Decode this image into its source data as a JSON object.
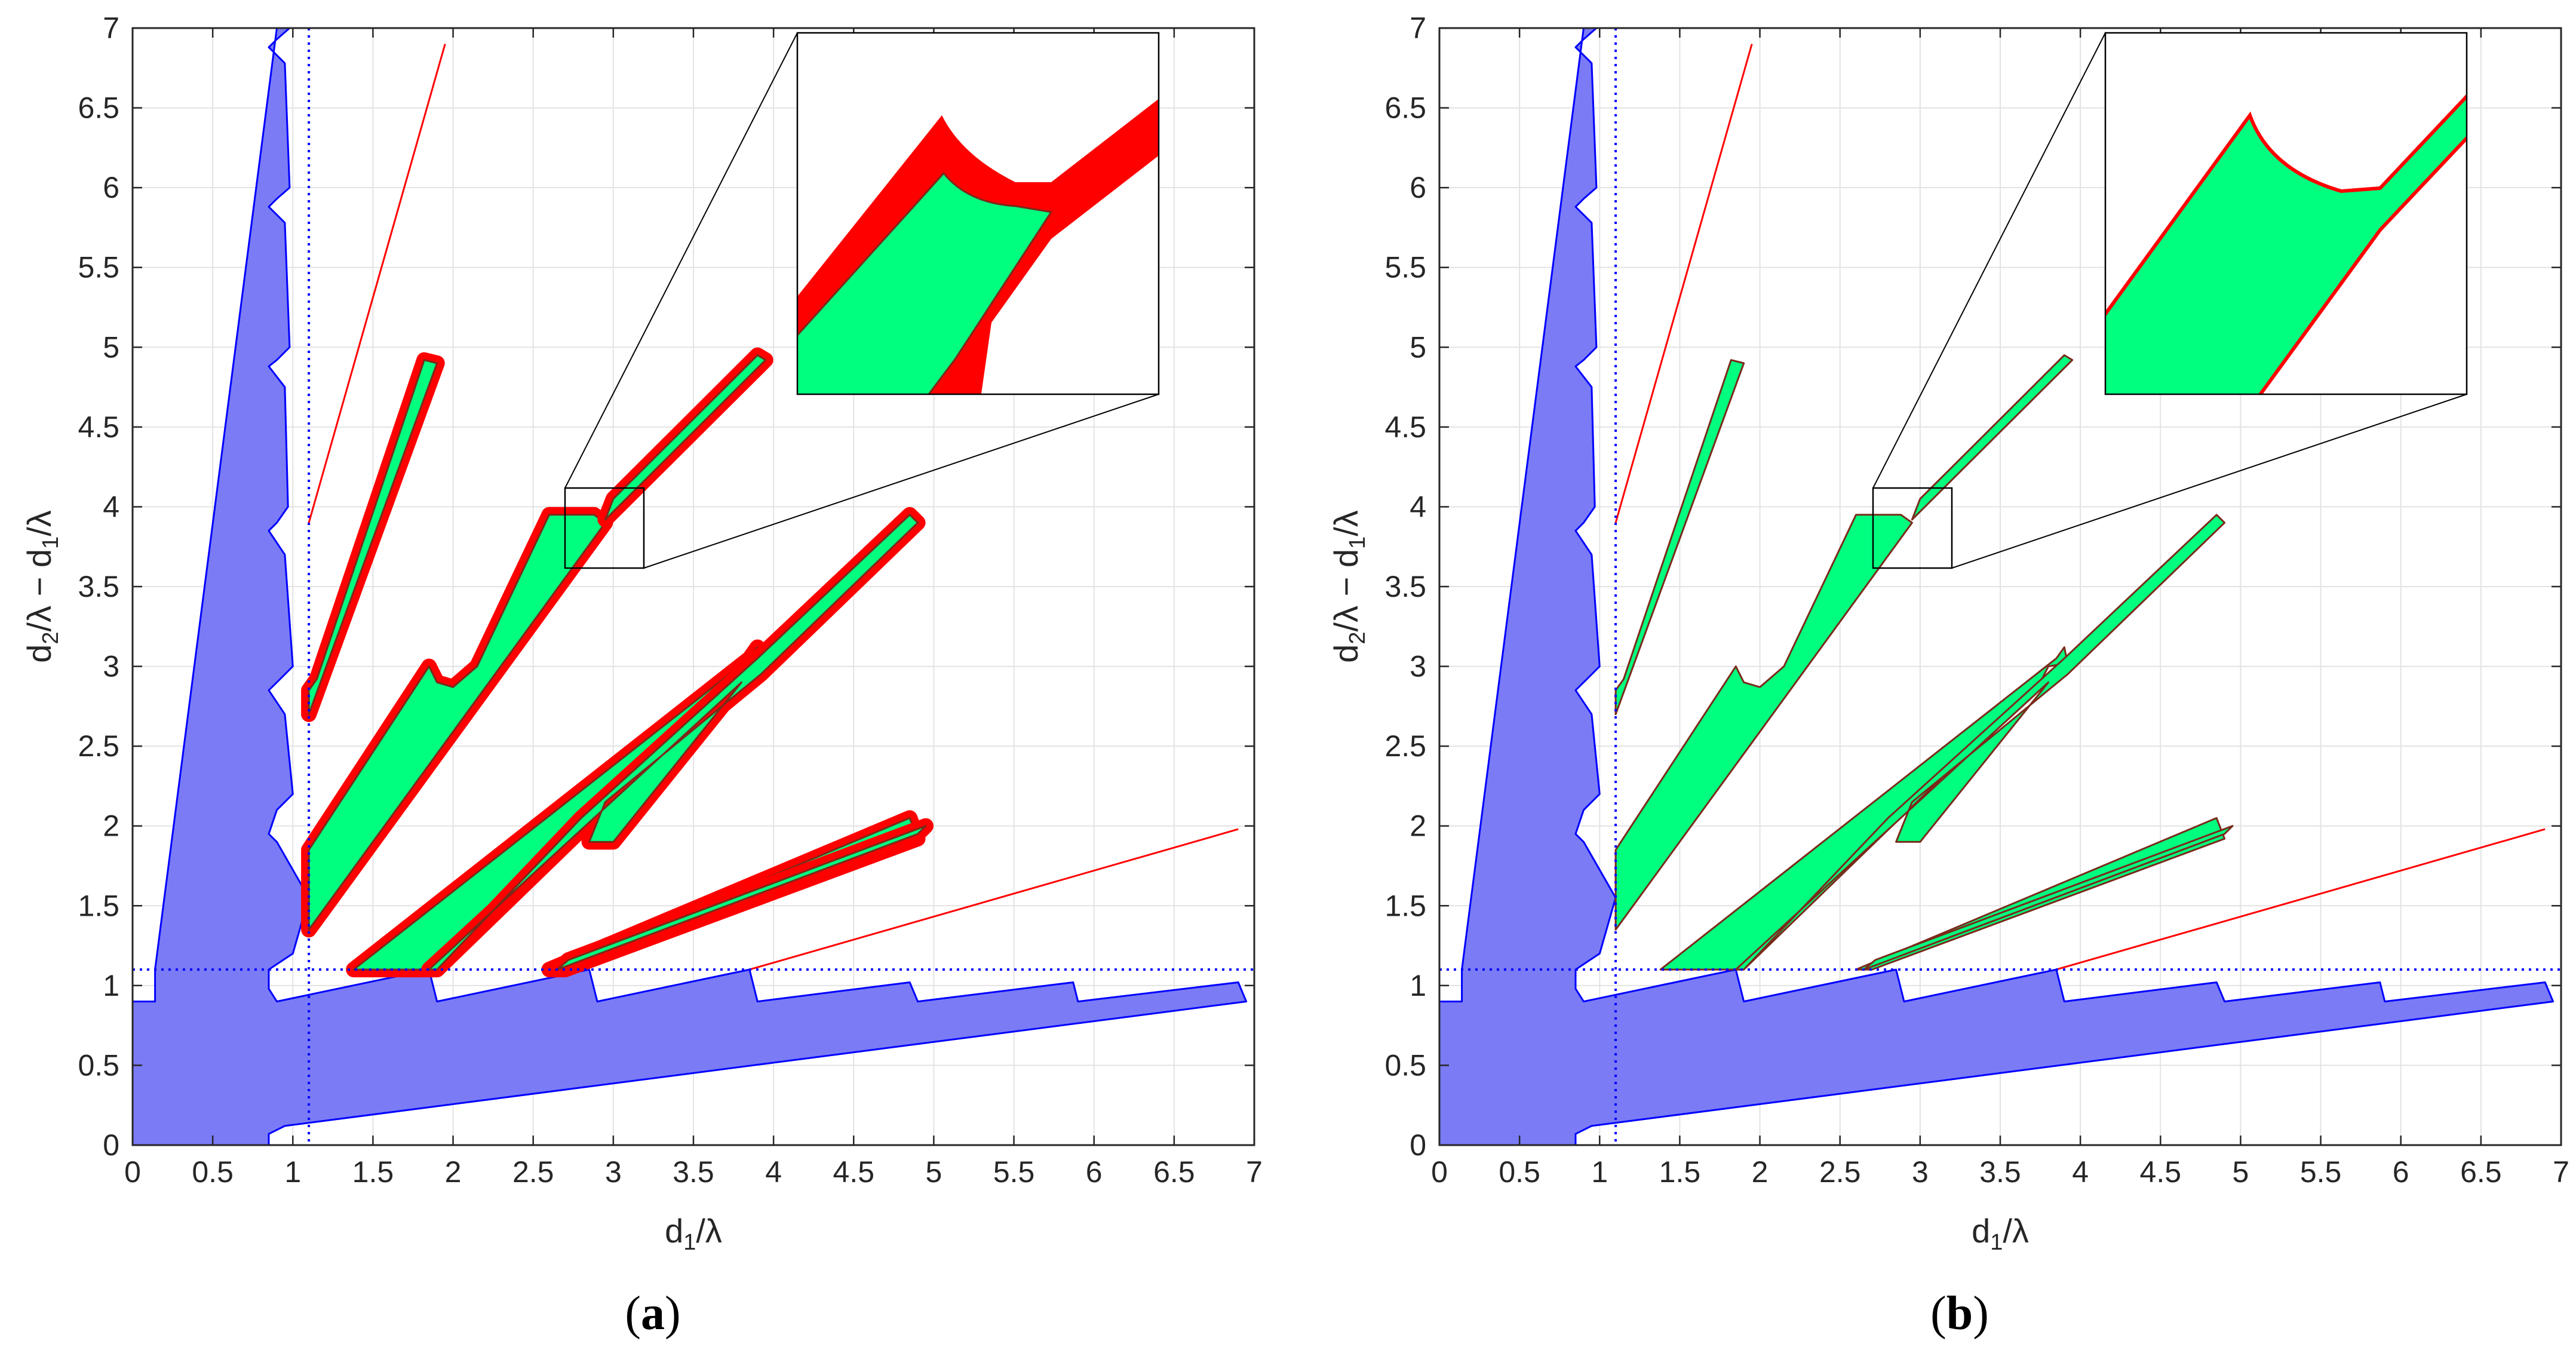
{
  "colors": {
    "blue_fill": "#7b7bf5",
    "blue_line": "#0000ff",
    "green_fill": "#00ff7f",
    "red": "#ff0000",
    "dark_edge": "#7a2a1a",
    "grid": "#e3e3e3",
    "axis": "#262626"
  },
  "chart_data": [
    {
      "type": "area",
      "panel": "a",
      "panel_label": "(a)",
      "panel_label_bold": "a",
      "xlabel": "d1/λ",
      "xlabel_main": "d",
      "xlabel_sub": "1",
      "xlabel_tail": "/λ",
      "ylabel": "d2/λ − d1/λ",
      "ylabel_p1": "d",
      "ylabel_s1": "2",
      "ylabel_p2": "/λ − d",
      "ylabel_s2": "1",
      "ylabel_p3": "/λ",
      "xlim": [
        0,
        7
      ],
      "ylim": [
        0,
        7
      ],
      "xticks": [
        "0",
        "0.5",
        "1",
        "1.5",
        "2",
        "2.5",
        "3",
        "3.5",
        "4",
        "4.5",
        "5",
        "5.5",
        "6",
        "6.5",
        "7"
      ],
      "yticks": [
        "0",
        "0.5",
        "1",
        "1.5",
        "2",
        "2.5",
        "3",
        "3.5",
        "4",
        "4.5",
        "5",
        "5.5",
        "6",
        "6.5",
        "7"
      ],
      "grid": true,
      "dotted_lines": {
        "x": 1.1,
        "y": 1.1
      },
      "thick_red_border": true,
      "inset": {
        "xlim": [
          2.7,
          3.2
        ],
        "ylim": [
          3.6,
          4.1
        ]
      }
    },
    {
      "type": "area",
      "panel": "b",
      "panel_label": "(b)",
      "panel_label_bold": "b",
      "xlabel": "d1/λ",
      "xlabel_main": "d",
      "xlabel_sub": "1",
      "xlabel_tail": "/λ",
      "ylabel": "d2/λ − d1/λ",
      "ylabel_p1": "d",
      "ylabel_s1": "2",
      "ylabel_p2": "/λ − d",
      "ylabel_s2": "1",
      "ylabel_p3": "/λ",
      "xlim": [
        0,
        7
      ],
      "ylim": [
        0,
        7
      ],
      "xticks": [
        "0",
        "0.5",
        "1",
        "1.5",
        "2",
        "2.5",
        "3",
        "3.5",
        "4",
        "4.5",
        "5",
        "5.5",
        "6",
        "6.5",
        "7"
      ],
      "yticks": [
        "0",
        "0.5",
        "1",
        "1.5",
        "2",
        "2.5",
        "3",
        "3.5",
        "4",
        "4.5",
        "5",
        "5.5",
        "6",
        "6.5",
        "7"
      ],
      "grid": true,
      "dotted_lines": {
        "x": 1.1,
        "y": 1.1
      },
      "thick_red_border": false,
      "inset": {
        "xlim": [
          2.7,
          3.2
        ],
        "ylim": [
          3.6,
          4.1
        ]
      }
    }
  ],
  "regions": {
    "blue": [
      [
        [
          0,
          0
        ],
        [
          0.85,
          0
        ],
        [
          0.85,
          0.07
        ],
        [
          0.95,
          0.12
        ],
        [
          6.95,
          0.9
        ],
        [
          6.9,
          1.02
        ],
        [
          5.9,
          0.9
        ],
        [
          5.87,
          1.02
        ],
        [
          4.9,
          0.9
        ],
        [
          4.85,
          1.02
        ],
        [
          3.9,
          0.9
        ],
        [
          3.85,
          1.1
        ],
        [
          2.9,
          0.9
        ],
        [
          2.85,
          1.1
        ],
        [
          1.9,
          0.9
        ],
        [
          1.85,
          1.1
        ],
        [
          0.9,
          0.9
        ],
        [
          0.85,
          0.98
        ],
        [
          0.85,
          1.1
        ],
        [
          1.0,
          1.2
        ],
        [
          1.1,
          1.55
        ],
        [
          0.9,
          1.9
        ],
        [
          0.85,
          1.95
        ],
        [
          0.9,
          2.1
        ],
        [
          1.0,
          2.2
        ],
        [
          0.95,
          2.7
        ],
        [
          0.85,
          2.85
        ],
        [
          0.9,
          2.9
        ],
        [
          1.0,
          3.0
        ],
        [
          0.95,
          3.7
        ],
        [
          0.85,
          3.85
        ],
        [
          0.9,
          3.9
        ],
        [
          0.97,
          4.0
        ],
        [
          0.95,
          4.75
        ],
        [
          0.85,
          4.88
        ],
        [
          0.9,
          4.92
        ],
        [
          0.98,
          5.0
        ],
        [
          0.95,
          5.78
        ],
        [
          0.85,
          5.88
        ],
        [
          0.9,
          5.93
        ],
        [
          0.98,
          6.0
        ],
        [
          0.95,
          6.78
        ],
        [
          0.85,
          6.88
        ],
        [
          0.9,
          6.93
        ],
        [
          0.98,
          7.0
        ],
        [
          0.9,
          7.0
        ],
        [
          0.14,
          1.1
        ],
        [
          0.14,
          0.9
        ],
        [
          0.0,
          0.9
        ]
      ]
    ],
    "green": [
      [
        [
          1.1,
          2.7
        ],
        [
          1.9,
          4.9
        ],
        [
          1.82,
          4.92
        ],
        [
          1.15,
          2.92
        ],
        [
          1.1,
          2.85
        ]
      ],
      [
        [
          1.1,
          1.35
        ],
        [
          2.95,
          3.9
        ],
        [
          2.88,
          3.95
        ],
        [
          2.6,
          3.95
        ],
        [
          2.15,
          3.0
        ],
        [
          2.0,
          2.87
        ],
        [
          1.9,
          2.9
        ],
        [
          1.85,
          3.0
        ],
        [
          1.1,
          1.85
        ]
      ],
      [
        [
          2.95,
          3.92
        ],
        [
          3.95,
          4.92
        ],
        [
          3.9,
          4.95
        ],
        [
          3.0,
          4.05
        ]
      ],
      [
        [
          1.38,
          1.1
        ],
        [
          1.9,
          1.1
        ],
        [
          3.75,
          2.9
        ],
        [
          3.8,
          3.0
        ],
        [
          3.92,
          3.02
        ],
        [
          3.9,
          3.12
        ],
        [
          3.85,
          3.05
        ],
        [
          1.38,
          1.1
        ]
      ],
      [
        [
          1.85,
          1.1
        ],
        [
          3.8,
          2.9
        ],
        [
          3.0,
          1.9
        ],
        [
          2.85,
          1.9
        ],
        [
          2.95,
          2.15
        ],
        [
          3.92,
          2.95
        ],
        [
          4.9,
          3.9
        ],
        [
          4.85,
          3.95
        ],
        [
          3.9,
          3.05
        ],
        [
          2.8,
          2.05
        ],
        [
          1.9,
          1.1
        ]
      ],
      [
        [
          2.6,
          1.1
        ],
        [
          4.85,
          2.05
        ],
        [
          4.9,
          1.92
        ],
        [
          2.7,
          1.1
        ]
      ],
      [
        [
          2.65,
          1.1
        ],
        [
          4.9,
          1.95
        ],
        [
          4.95,
          2.0
        ],
        [
          2.72,
          1.16
        ]
      ]
    ],
    "red_lines": [
      [
        [
          1.1,
          3.9
        ],
        [
          1.95,
          6.9
        ]
      ],
      [
        [
          3.85,
          1.1
        ],
        [
          6.9,
          1.98
        ]
      ]
    ],
    "blue_outline_dotted": true
  }
}
